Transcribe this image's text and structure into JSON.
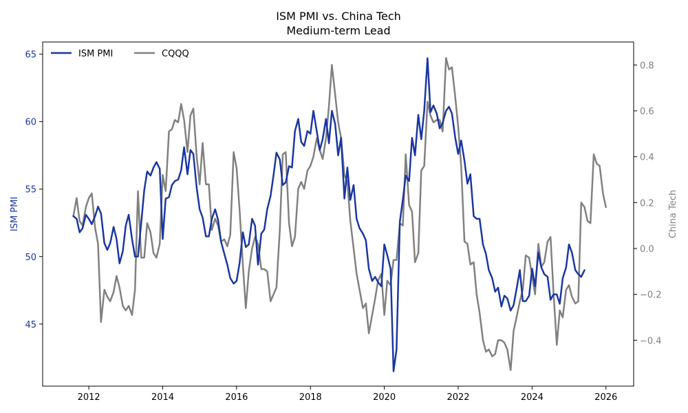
{
  "colors": {
    "ism": "#1a36a0",
    "cqqq": "#808080",
    "axis": "#000000"
  },
  "chart_data": {
    "type": "line",
    "title": "ISM PMI vs. China Tech",
    "subtitle": "Medium-term Lead",
    "xlabel": "",
    "ylabel_left": "ISM PMI",
    "ylabel_right": "China Tech",
    "xlim": [
      2010.75,
      2026.75
    ],
    "ylim_left": [
      40.4,
      65.9
    ],
    "ylim_right": [
      -0.6,
      0.9
    ],
    "x_ticks": [
      2012,
      2014,
      2016,
      2018,
      2020,
      2022,
      2024,
      2026
    ],
    "x_tick_labels": [
      "2012",
      "2014",
      "2016",
      "2018",
      "2020",
      "2022",
      "2024",
      "2026"
    ],
    "y_left_ticks": [
      45,
      50,
      55,
      60,
      65
    ],
    "y_left_tick_labels": [
      "45",
      "50",
      "55",
      "60",
      "65"
    ],
    "y_right_ticks": [
      -0.4,
      -0.2,
      0.0,
      0.2,
      0.4,
      0.6,
      0.8
    ],
    "y_right_tick_labels": [
      "−0.4",
      "−0.2",
      "0.0",
      "0.2",
      "0.4",
      "0.6",
      "0.8"
    ],
    "grid": false,
    "legend": {
      "placement": "top-left",
      "entries": [
        "ISM PMI",
        "CQQQ"
      ]
    },
    "series": [
      {
        "name": "ISM PMI",
        "axis": "left",
        "x": [
          2011.58,
          2011.67,
          2011.75,
          2011.83,
          2011.92,
          2012.0,
          2012.08,
          2012.17,
          2012.25,
          2012.33,
          2012.42,
          2012.5,
          2012.58,
          2012.67,
          2012.75,
          2012.83,
          2012.92,
          2013.0,
          2013.08,
          2013.17,
          2013.25,
          2013.33,
          2013.42,
          2013.5,
          2013.58,
          2013.67,
          2013.75,
          2013.83,
          2013.92,
          2014.0,
          2014.08,
          2014.17,
          2014.25,
          2014.33,
          2014.42,
          2014.5,
          2014.58,
          2014.67,
          2014.75,
          2014.83,
          2014.92,
          2015.0,
          2015.08,
          2015.17,
          2015.25,
          2015.33,
          2015.42,
          2015.5,
          2015.58,
          2015.67,
          2015.75,
          2015.83,
          2015.92,
          2016.0,
          2016.08,
          2016.17,
          2016.25,
          2016.33,
          2016.42,
          2016.5,
          2016.58,
          2016.67,
          2016.75,
          2016.83,
          2016.92,
          2017.0,
          2017.08,
          2017.17,
          2017.25,
          2017.33,
          2017.42,
          2017.5,
          2017.58,
          2017.67,
          2017.75,
          2017.83,
          2017.92,
          2018.0,
          2018.08,
          2018.17,
          2018.25,
          2018.33,
          2018.42,
          2018.5,
          2018.58,
          2018.67,
          2018.75,
          2018.83,
          2018.92,
          2019.0,
          2019.08,
          2019.17,
          2019.25,
          2019.33,
          2019.42,
          2019.5,
          2019.58,
          2019.67,
          2019.75,
          2019.83,
          2019.92,
          2020.0,
          2020.08,
          2020.17,
          2020.25,
          2020.33,
          2020.42,
          2020.5,
          2020.58,
          2020.67,
          2020.75,
          2020.83,
          2020.92,
          2021.0,
          2021.08,
          2021.17,
          2021.25,
          2021.33,
          2021.42,
          2021.5,
          2021.58,
          2021.67,
          2021.75,
          2021.83,
          2021.92,
          2022.0,
          2022.08,
          2022.17,
          2022.25,
          2022.33,
          2022.42,
          2022.5,
          2022.58,
          2022.67,
          2022.75,
          2022.83,
          2022.92,
          2023.0,
          2023.08,
          2023.17,
          2023.25,
          2023.33,
          2023.42,
          2023.5,
          2023.58,
          2023.67,
          2023.75,
          2023.83,
          2023.92,
          2024.0,
          2024.08,
          2024.17,
          2024.25,
          2024.33,
          2024.42,
          2024.5,
          2024.58,
          2024.67,
          2024.75,
          2024.83,
          2024.92,
          2025.0,
          2025.08,
          2025.17,
          2025.25,
          2025.33,
          2025.42
        ],
        "values": [
          53.0,
          52.8,
          51.8,
          52.1,
          53.1,
          52.8,
          52.4,
          53.0,
          53.7,
          53.2,
          51.0,
          50.5,
          51.0,
          52.2,
          51.3,
          49.5,
          50.4,
          52.3,
          53.1,
          51.3,
          50.0,
          50.0,
          52.5,
          54.9,
          56.3,
          56.0,
          56.6,
          57.0,
          56.5,
          51.3,
          54.3,
          54.4,
          55.3,
          55.6,
          55.7,
          56.4,
          58.1,
          56.1,
          57.9,
          57.6,
          55.1,
          53.5,
          52.9,
          51.5,
          51.5,
          52.8,
          53.5,
          52.7,
          51.1,
          50.2,
          49.4,
          48.4,
          48.0,
          48.2,
          49.5,
          51.8,
          50.7,
          50.9,
          52.8,
          52.3,
          49.4,
          51.7,
          52.0,
          53.5,
          54.5,
          56.0,
          57.7,
          57.2,
          55.3,
          55.5,
          56.7,
          56.6,
          59.3,
          60.2,
          58.5,
          58.2,
          59.3,
          59.1,
          60.8,
          59.3,
          57.9,
          58.7,
          60.2,
          58.4,
          60.8,
          59.8,
          57.5,
          58.8,
          54.3,
          56.6,
          54.2,
          55.3,
          52.8,
          52.1,
          51.7,
          51.2,
          49.1,
          48.2,
          48.5,
          48.1,
          47.8,
          50.9,
          50.1,
          49.1,
          41.5,
          43.1,
          52.6,
          54.2,
          56.0,
          55.6,
          58.8,
          57.5,
          60.5,
          58.7,
          60.8,
          64.7,
          60.7,
          61.2,
          60.6,
          59.5,
          59.9,
          60.8,
          61.1,
          60.6,
          58.8,
          57.6,
          58.6,
          57.1,
          55.4,
          56.1,
          53.0,
          52.8,
          52.8,
          50.9,
          50.2,
          49.0,
          48.4,
          47.4,
          47.7,
          46.3,
          47.1,
          46.9,
          46.0,
          46.4,
          47.6,
          49.0,
          46.7,
          46.7,
          47.1,
          49.1,
          47.8,
          50.3,
          49.2,
          48.7,
          48.5,
          46.8,
          47.2,
          47.2,
          46.5,
          48.4,
          49.2,
          50.9,
          50.3,
          49.0,
          48.7,
          48.5,
          49.0
        ]
      },
      {
        "name": "CQQQ",
        "axis": "right",
        "x": [
          2011.58,
          2011.67,
          2011.75,
          2011.83,
          2011.92,
          2012.0,
          2012.08,
          2012.17,
          2012.25,
          2012.33,
          2012.42,
          2012.5,
          2012.58,
          2012.67,
          2012.75,
          2012.83,
          2012.92,
          2013.0,
          2013.08,
          2013.17,
          2013.25,
          2013.33,
          2013.42,
          2013.5,
          2013.58,
          2013.67,
          2013.75,
          2013.83,
          2013.92,
          2014.0,
          2014.08,
          2014.17,
          2014.25,
          2014.33,
          2014.42,
          2014.5,
          2014.58,
          2014.67,
          2014.75,
          2014.83,
          2014.92,
          2015.0,
          2015.08,
          2015.17,
          2015.25,
          2015.33,
          2015.42,
          2015.5,
          2015.58,
          2015.67,
          2015.75,
          2015.83,
          2015.92,
          2016.0,
          2016.08,
          2016.17,
          2016.25,
          2016.33,
          2016.42,
          2016.5,
          2016.58,
          2016.67,
          2016.75,
          2016.83,
          2016.92,
          2017.0,
          2017.08,
          2017.17,
          2017.25,
          2017.33,
          2017.42,
          2017.5,
          2017.58,
          2017.67,
          2017.75,
          2017.83,
          2017.92,
          2018.0,
          2018.08,
          2018.17,
          2018.25,
          2018.33,
          2018.42,
          2018.5,
          2018.58,
          2018.67,
          2018.75,
          2018.83,
          2018.92,
          2019.0,
          2019.08,
          2019.17,
          2019.25,
          2019.33,
          2019.42,
          2019.5,
          2019.58,
          2019.67,
          2019.75,
          2019.83,
          2019.92,
          2020.0,
          2020.08,
          2020.17,
          2020.25,
          2020.33,
          2020.42,
          2020.5,
          2020.58,
          2020.67,
          2020.75,
          2020.83,
          2020.92,
          2021.0,
          2021.08,
          2021.17,
          2021.25,
          2021.33,
          2021.42,
          2021.5,
          2021.58,
          2021.67,
          2021.75,
          2021.83,
          2021.92,
          2022.0,
          2022.08,
          2022.17,
          2022.25,
          2022.33,
          2022.42,
          2022.5,
          2022.58,
          2022.67,
          2022.75,
          2022.83,
          2022.92,
          2023.0,
          2023.08,
          2023.17,
          2023.25,
          2023.33,
          2023.42,
          2023.5,
          2023.58,
          2023.67,
          2023.75,
          2023.83,
          2023.92,
          2024.0,
          2024.08,
          2024.17,
          2024.25,
          2024.33,
          2024.42,
          2024.5,
          2024.58,
          2024.67,
          2024.75,
          2024.83,
          2024.92,
          2025.0,
          2025.08,
          2025.17,
          2025.25,
          2025.33,
          2025.42,
          2025.5,
          2025.58,
          2025.67,
          2025.75,
          2025.83,
          2025.92,
          2026.0
        ],
        "values": [
          0.14,
          0.22,
          0.12,
          0.1,
          0.18,
          0.22,
          0.24,
          0.09,
          0.02,
          -0.32,
          -0.18,
          -0.21,
          -0.23,
          -0.19,
          -0.12,
          -0.17,
          -0.25,
          -0.27,
          -0.25,
          -0.29,
          -0.18,
          0.25,
          -0.04,
          -0.04,
          0.11,
          0.07,
          -0.02,
          -0.04,
          0.02,
          0.32,
          0.25,
          0.51,
          0.52,
          0.56,
          0.55,
          0.63,
          0.56,
          0.42,
          0.58,
          0.61,
          0.4,
          0.28,
          0.46,
          0.28,
          0.28,
          0.08,
          0.13,
          0.1,
          0.03,
          0.04,
          0.01,
          0.06,
          0.42,
          0.35,
          0.17,
          -0.07,
          -0.26,
          -0.1,
          0.0,
          0.05,
          0.02,
          -0.09,
          -0.09,
          -0.1,
          -0.23,
          -0.2,
          -0.17,
          0.08,
          0.41,
          0.42,
          0.11,
          0.01,
          0.05,
          0.26,
          0.29,
          0.26,
          0.34,
          0.36,
          0.4,
          0.48,
          0.43,
          0.39,
          0.48,
          0.62,
          0.8,
          0.67,
          0.55,
          0.48,
          0.32,
          0.29,
          0.12,
          0.0,
          -0.11,
          -0.18,
          -0.26,
          -0.24,
          -0.37,
          -0.29,
          -0.22,
          -0.14,
          -0.11,
          -0.29,
          -0.14,
          -0.16,
          -0.05,
          -0.05,
          0.11,
          0.1,
          0.41,
          0.19,
          0.16,
          -0.06,
          -0.02,
          0.34,
          0.36,
          0.64,
          0.58,
          0.55,
          0.56,
          0.56,
          0.51,
          0.83,
          0.78,
          0.79,
          0.66,
          0.53,
          0.36,
          0.03,
          0.02,
          -0.07,
          -0.06,
          -0.2,
          -0.28,
          -0.4,
          -0.45,
          -0.44,
          -0.47,
          -0.46,
          -0.4,
          -0.4,
          -0.41,
          -0.44,
          -0.53,
          -0.36,
          -0.3,
          -0.23,
          -0.18,
          -0.03,
          -0.04,
          -0.12,
          -0.2,
          0.02,
          -0.08,
          -0.06,
          0.03,
          0.05,
          -0.19,
          -0.42,
          -0.27,
          -0.3,
          -0.18,
          -0.16,
          -0.21,
          -0.24,
          -0.23,
          0.2,
          0.18,
          0.12,
          0.11,
          0.41,
          0.37,
          0.36,
          0.24,
          0.18
        ]
      }
    ]
  }
}
